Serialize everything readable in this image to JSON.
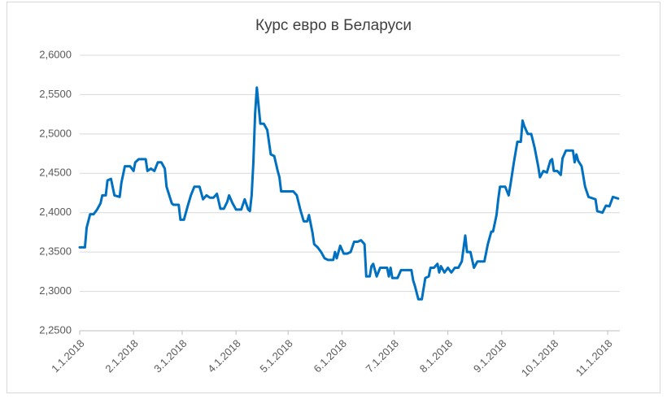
{
  "chart_data": {
    "type": "line",
    "title": "Курс евро в Беларуси",
    "color": "#0070c0",
    "grid": true,
    "x": [
      "2018-01-01",
      "2018-01-04",
      "2018-01-05",
      "2018-01-07",
      "2018-01-09",
      "2018-01-11",
      "2018-01-13",
      "2018-01-14",
      "2018-01-16",
      "2018-01-17",
      "2018-01-19",
      "2018-01-21",
      "2018-01-24",
      "2018-01-25",
      "2018-01-27",
      "2018-01-30",
      "2018-02-01",
      "2018-02-02",
      "2018-02-04",
      "2018-02-08",
      "2018-02-09",
      "2018-02-11",
      "2018-02-13",
      "2018-02-15",
      "2018-02-17",
      "2018-02-19",
      "2018-02-20",
      "2018-02-23",
      "2018-02-24",
      "2018-02-27",
      "2018-02-28",
      "2018-03-02",
      "2018-03-04",
      "2018-03-06",
      "2018-03-08",
      "2018-03-11",
      "2018-03-13",
      "2018-03-15",
      "2018-03-17",
      "2018-03-19",
      "2018-03-21",
      "2018-03-23",
      "2018-03-25",
      "2018-03-27",
      "2018-03-28",
      "2018-03-30",
      "2018-04-01",
      "2018-04-04",
      "2018-04-06",
      "2018-04-08",
      "2018-04-09",
      "2018-04-10",
      "2018-04-11",
      "2018-04-12",
      "2018-04-13",
      "2018-04-14",
      "2018-04-15",
      "2018-04-17",
      "2018-04-19",
      "2018-04-21",
      "2018-04-23",
      "2018-04-25",
      "2018-04-26",
      "2018-04-27",
      "2018-04-29",
      "2018-05-02",
      "2018-05-04",
      "2018-05-06",
      "2018-05-08",
      "2018-05-10",
      "2018-05-12",
      "2018-05-13",
      "2018-05-15",
      "2018-05-16",
      "2018-05-18",
      "2018-05-20",
      "2018-05-22",
      "2018-05-24",
      "2018-05-27",
      "2018-05-28",
      "2018-05-29",
      "2018-05-31",
      "2018-06-02",
      "2018-06-04",
      "2018-06-06",
      "2018-06-08",
      "2018-06-10",
      "2018-06-12",
      "2018-06-14",
      "2018-06-15",
      "2018-06-17",
      "2018-06-18",
      "2018-06-19",
      "2018-06-21",
      "2018-06-23",
      "2018-06-25",
      "2018-06-27",
      "2018-06-28",
      "2018-06-29",
      "2018-06-30",
      "2018-07-01",
      "2018-07-03",
      "2018-07-05",
      "2018-07-08",
      "2018-07-11",
      "2018-07-12",
      "2018-07-13",
      "2018-07-15",
      "2018-07-17",
      "2018-07-19",
      "2018-07-21",
      "2018-07-22",
      "2018-07-24",
      "2018-07-26",
      "2018-07-27",
      "2018-07-28",
      "2018-07-30",
      "2018-08-01",
      "2018-08-03",
      "2018-08-05",
      "2018-08-07",
      "2018-08-09",
      "2018-08-11",
      "2018-08-12",
      "2018-08-14",
      "2018-08-16",
      "2018-08-18",
      "2018-08-22",
      "2018-08-24",
      "2018-08-26",
      "2018-08-27",
      "2018-08-29",
      "2018-08-30",
      "2018-08-31",
      "2018-09-03",
      "2018-09-05",
      "2018-09-06",
      "2018-09-08",
      "2018-09-10",
      "2018-09-12",
      "2018-09-13",
      "2018-09-14",
      "2018-09-16",
      "2018-09-18",
      "2018-09-20",
      "2018-09-22",
      "2018-09-23",
      "2018-09-25",
      "2018-09-27",
      "2018-09-29",
      "2018-09-30",
      "2018-10-01",
      "2018-10-03",
      "2018-10-05",
      "2018-10-06",
      "2018-10-08",
      "2018-10-12",
      "2018-10-13",
      "2018-10-14",
      "2018-10-15",
      "2018-10-17",
      "2018-10-19",
      "2018-10-21",
      "2018-10-25",
      "2018-10-26",
      "2018-10-29",
      "2018-10-31",
      "2018-11-02",
      "2018-11-04",
      "2018-11-07"
    ],
    "values": [
      2.356,
      2.356,
      2.381,
      2.398,
      2.398,
      2.404,
      2.412,
      2.422,
      2.422,
      2.441,
      2.443,
      2.422,
      2.42,
      2.438,
      2.459,
      2.459,
      2.453,
      2.464,
      2.468,
      2.468,
      2.453,
      2.456,
      2.453,
      2.464,
      2.464,
      2.456,
      2.433,
      2.412,
      2.41,
      2.41,
      2.391,
      2.391,
      2.407,
      2.422,
      2.433,
      2.433,
      2.417,
      2.422,
      2.419,
      2.419,
      2.424,
      2.405,
      2.405,
      2.414,
      2.422,
      2.412,
      2.404,
      2.404,
      2.417,
      2.404,
      2.402,
      2.422,
      2.464,
      2.526,
      2.559,
      2.536,
      2.513,
      2.513,
      2.505,
      2.474,
      2.472,
      2.453,
      2.445,
      2.427,
      2.427,
      2.427,
      2.427,
      2.422,
      2.404,
      2.389,
      2.389,
      2.397,
      2.375,
      2.36,
      2.356,
      2.35,
      2.342,
      2.34,
      2.34,
      2.35,
      2.342,
      2.358,
      2.348,
      2.348,
      2.35,
      2.363,
      2.363,
      2.365,
      2.36,
      2.319,
      2.319,
      2.332,
      2.335,
      2.319,
      2.33,
      2.33,
      2.33,
      2.319,
      2.33,
      2.317,
      2.317,
      2.317,
      2.327,
      2.327,
      2.327,
      2.314,
      2.307,
      2.29,
      2.29,
      2.317,
      2.319,
      2.33,
      2.33,
      2.335,
      2.324,
      2.332,
      2.324,
      2.33,
      2.324,
      2.33,
      2.33,
      2.338,
      2.371,
      2.35,
      2.35,
      2.33,
      2.338,
      2.338,
      2.36,
      2.376,
      2.376,
      2.397,
      2.417,
      2.433,
      2.433,
      2.422,
      2.435,
      2.464,
      2.49,
      2.49,
      2.517,
      2.51,
      2.5,
      2.5,
      2.482,
      2.459,
      2.445,
      2.453,
      2.451,
      2.466,
      2.468,
      2.453,
      2.453,
      2.448,
      2.469,
      2.479,
      2.479,
      2.464,
      2.474,
      2.466,
      2.459,
      2.433,
      2.42,
      2.417,
      2.402,
      2.4,
      2.409,
      2.408,
      2.42,
      2.418
    ],
    "xlim": [
      "2018-01-01",
      "2018-11-08"
    ],
    "xticks": [
      {
        "value": "2018-01-01",
        "label": "1.1.2018"
      },
      {
        "value": "2018-02-01",
        "label": "2.1.2018"
      },
      {
        "value": "2018-03-01",
        "label": "3.1.2018"
      },
      {
        "value": "2018-04-01",
        "label": "4.1.2018"
      },
      {
        "value": "2018-05-01",
        "label": "5.1.2018"
      },
      {
        "value": "2018-06-01",
        "label": "6.1.2018"
      },
      {
        "value": "2018-07-01",
        "label": "7.1.2018"
      },
      {
        "value": "2018-08-01",
        "label": "8.1.2018"
      },
      {
        "value": "2018-09-01",
        "label": "9.1.2018"
      },
      {
        "value": "2018-10-01",
        "label": "10.1.2018"
      },
      {
        "value": "2018-11-01",
        "label": "11.1.2018"
      }
    ],
    "ylim": [
      2.25,
      2.6
    ],
    "yticks": [
      {
        "value": 2.25,
        "label": "2,2500"
      },
      {
        "value": 2.3,
        "label": "2,3000"
      },
      {
        "value": 2.35,
        "label": "2,3500"
      },
      {
        "value": 2.4,
        "label": "2,4000"
      },
      {
        "value": 2.45,
        "label": "2,4500"
      },
      {
        "value": 2.5,
        "label": "2,5000"
      },
      {
        "value": 2.55,
        "label": "2,5500"
      },
      {
        "value": 2.6,
        "label": "2,6000"
      }
    ]
  }
}
